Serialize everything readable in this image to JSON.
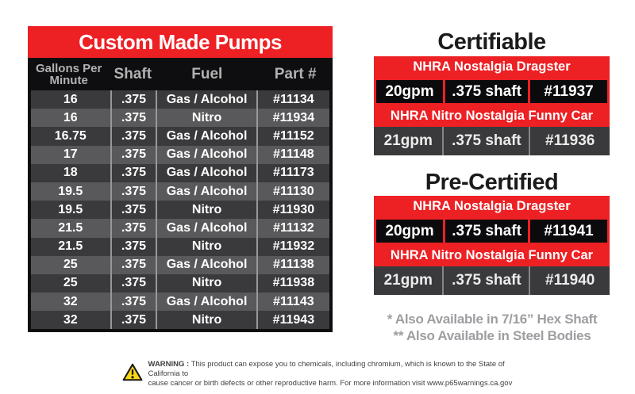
{
  "colors": {
    "red": "#ed2024",
    "header_black": "#0e0e10",
    "row_dark": "#3a3a3c",
    "row_light": "#59595b",
    "divider_gray": "#98989b",
    "footnote_gray": "#9c9ea1",
    "warning_yellow": "#f9d616"
  },
  "pump_table": {
    "title": "Custom Made Pumps",
    "columns": [
      "Gallons Per Minute",
      "Shaft",
      "Fuel",
      "Part #"
    ],
    "rows": [
      {
        "gpm": "16",
        "shaft": ".375",
        "fuel": "Gas / Alcohol",
        "part": "#11134"
      },
      {
        "gpm": "16",
        "shaft": ".375",
        "fuel": "Nitro",
        "part": "#11934"
      },
      {
        "gpm": "16.75",
        "shaft": ".375",
        "fuel": "Gas / Alcohol",
        "part": "#11152"
      },
      {
        "gpm": "17",
        "shaft": ".375",
        "fuel": "Gas / Alcohol",
        "part": "#11148"
      },
      {
        "gpm": "18",
        "shaft": ".375",
        "fuel": "Gas / Alcohol",
        "part": "#11173"
      },
      {
        "gpm": "19.5",
        "shaft": ".375",
        "fuel": "Gas / Alcohol",
        "part": "#11130"
      },
      {
        "gpm": "19.5",
        "shaft": ".375",
        "fuel": "Nitro",
        "part": "#11930"
      },
      {
        "gpm": "21.5",
        "shaft": ".375",
        "fuel": "Gas / Alcohol",
        "part": "#11132"
      },
      {
        "gpm": "21.5",
        "shaft": ".375",
        "fuel": "Nitro",
        "part": "#11932"
      },
      {
        "gpm": "25",
        "shaft": ".375",
        "fuel": "Gas / Alcohol",
        "part": "#11138"
      },
      {
        "gpm": "25",
        "shaft": ".375",
        "fuel": "Nitro",
        "part": "#11938"
      },
      {
        "gpm": "32",
        "shaft": ".375",
        "fuel": "Gas / Alcohol",
        "part": "#11143"
      },
      {
        "gpm": "32",
        "shaft": ".375",
        "fuel": "Nitro",
        "part": "#11943"
      }
    ]
  },
  "certifiable": {
    "heading": "Certifiable",
    "entries": [
      {
        "label": "NHRA Nostalgia Dragster",
        "gpm": "20gpm",
        "shaft": ".375 shaft",
        "part": "#11937"
      },
      {
        "label": "NHRA Nitro Nostalgia Funny Car",
        "gpm": "21gpm",
        "shaft": ".375 shaft",
        "part": "#11936"
      }
    ]
  },
  "pre_certified": {
    "heading": "Pre-Certified",
    "entries": [
      {
        "label": "NHRA Nostalgia Dragster",
        "gpm": "20gpm",
        "shaft": ".375 shaft",
        "part": "#11941"
      },
      {
        "label": "NHRA Nitro Nostalgia Funny Car",
        "gpm": "21gpm",
        "shaft": ".375 shaft",
        "part": "#11940"
      }
    ]
  },
  "footnotes": [
    "* Also Available in 7/16” Hex Shaft",
    "** Also Available in Steel Bodies"
  ],
  "warning": {
    "label": "WARNING :",
    "line1": "This product can expose you to chemicals, including chromium, which is known to the State of California to",
    "line2": "cause cancer or birth defects or other reproductive harm. For more information visit www.p65warnings.ca.gov"
  }
}
